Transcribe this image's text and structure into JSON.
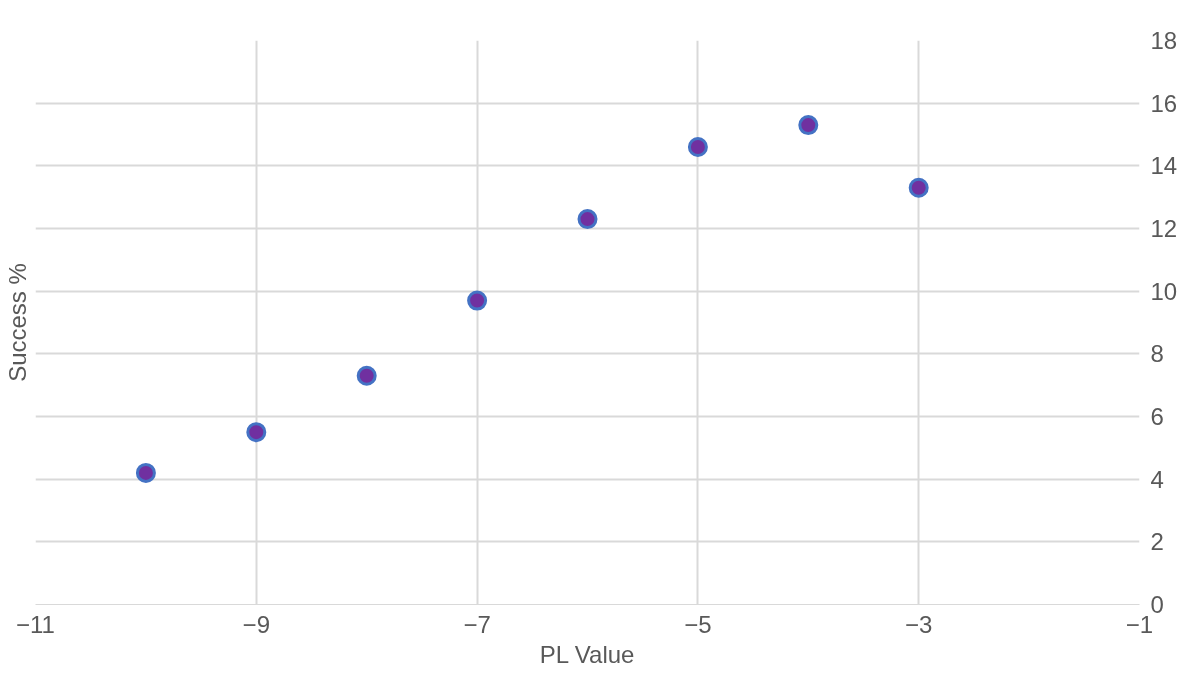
{
  "chart_data": {
    "type": "scatter",
    "xlabel": "PL Value",
    "ylabel": "Success %",
    "x": [
      -10,
      -9,
      -8,
      -7,
      -6,
      -5,
      -4,
      -3
    ],
    "series": [
      {
        "color": "#7030a0",
        "values": [
          4.2,
          5.5,
          7.3,
          9.7,
          12.3,
          14.6,
          15.3,
          13.3
        ]
      }
    ],
    "xlim": [
      -11,
      -1
    ],
    "xticks": [
      -11,
      -9,
      -7,
      -5,
      -3,
      -1
    ],
    "ylim": [
      0,
      18
    ],
    "yticks": [
      0,
      2,
      4,
      6,
      8,
      10,
      12,
      14,
      16,
      18
    ],
    "grid": true,
    "marker": "circle"
  }
}
